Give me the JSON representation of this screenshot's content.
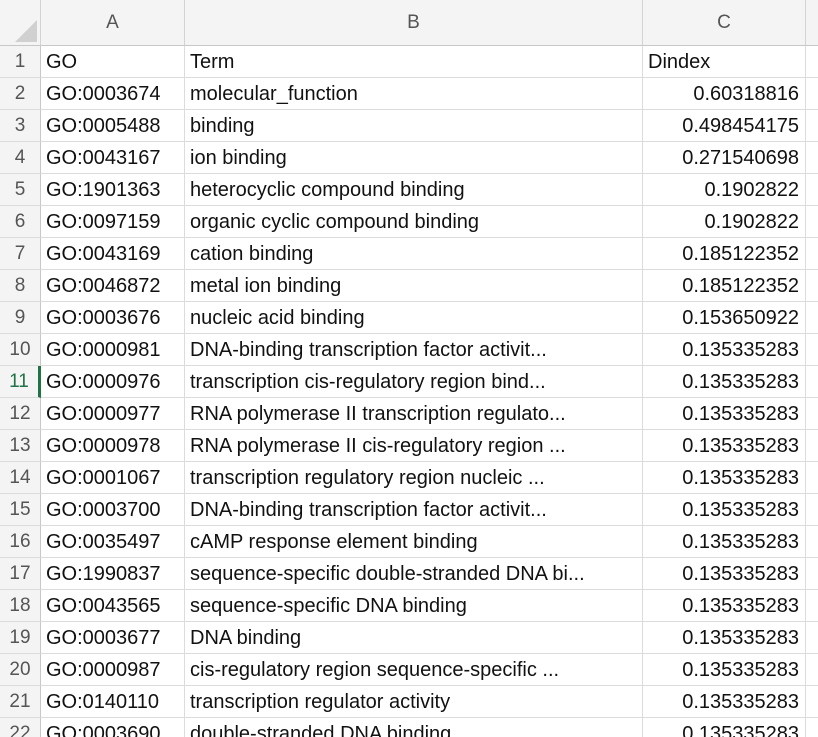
{
  "columns": {
    "corner": "",
    "A": "A",
    "B": "B",
    "C": "C"
  },
  "active_row": "11",
  "rows": [
    {
      "n": "1",
      "go": "GO",
      "term": "Term",
      "dindex": "Dindex"
    },
    {
      "n": "2",
      "go": "GO:0003674",
      "term": "molecular_function",
      "dindex": "0.60318816"
    },
    {
      "n": "3",
      "go": "GO:0005488",
      "term": "binding",
      "dindex": "0.498454175"
    },
    {
      "n": "4",
      "go": "GO:0043167",
      "term": "ion binding",
      "dindex": "0.271540698"
    },
    {
      "n": "5",
      "go": "GO:1901363",
      "term": "heterocyclic compound binding",
      "dindex": "0.1902822"
    },
    {
      "n": "6",
      "go": "GO:0097159",
      "term": "organic cyclic compound binding",
      "dindex": "0.1902822"
    },
    {
      "n": "7",
      "go": "GO:0043169",
      "term": "cation binding",
      "dindex": "0.185122352"
    },
    {
      "n": "8",
      "go": "GO:0046872",
      "term": "metal ion binding",
      "dindex": "0.185122352"
    },
    {
      "n": "9",
      "go": "GO:0003676",
      "term": "nucleic acid binding",
      "dindex": "0.153650922"
    },
    {
      "n": "10",
      "go": "GO:0000981",
      "term": "DNA-binding transcription factor activit...",
      "dindex": "0.135335283"
    },
    {
      "n": "11",
      "go": "GO:0000976",
      "term": "transcription cis-regulatory region bind...",
      "dindex": "0.135335283"
    },
    {
      "n": "12",
      "go": "GO:0000977",
      "term": "RNA polymerase II transcription regulato...",
      "dindex": "0.135335283"
    },
    {
      "n": "13",
      "go": "GO:0000978",
      "term": "RNA polymerase II cis-regulatory region ...",
      "dindex": "0.135335283"
    },
    {
      "n": "14",
      "go": "GO:0001067",
      "term": "transcription regulatory region nucleic ...",
      "dindex": "0.135335283"
    },
    {
      "n": "15",
      "go": "GO:0003700",
      "term": "DNA-binding transcription factor activit...",
      "dindex": "0.135335283"
    },
    {
      "n": "16",
      "go": "GO:0035497",
      "term": "cAMP response element binding",
      "dindex": "0.135335283"
    },
    {
      "n": "17",
      "go": "GO:1990837",
      "term": "sequence-specific double-stranded DNA bi...",
      "dindex": "0.135335283"
    },
    {
      "n": "18",
      "go": "GO:0043565",
      "term": "sequence-specific DNA binding",
      "dindex": "0.135335283"
    },
    {
      "n": "19",
      "go": "GO:0003677",
      "term": "DNA binding",
      "dindex": "0.135335283"
    },
    {
      "n": "20",
      "go": "GO:0000987",
      "term": "cis-regulatory region sequence-specific ...",
      "dindex": "0.135335283"
    },
    {
      "n": "21",
      "go": "GO:0140110",
      "term": "transcription regulator activity",
      "dindex": "0.135335283"
    },
    {
      "n": "22",
      "go": "GO:0003690",
      "term": "double-stranded DNA binding",
      "dindex": "0.135335283"
    }
  ]
}
